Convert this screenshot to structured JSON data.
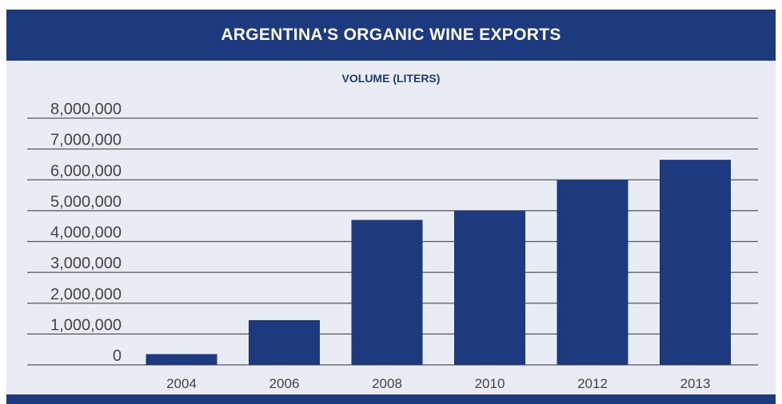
{
  "header": {
    "title": "ARGENTINA'S ORGANIC WINE EXPORTS"
  },
  "chart_data": {
    "type": "bar",
    "title": "ARGENTINA'S ORGANIC WINE EXPORTS",
    "subtitle": "VOLUME (LITERS)",
    "categories": [
      "2004",
      "2006",
      "2008",
      "2010",
      "2012",
      "2013"
    ],
    "values": [
      350000,
      1450000,
      4700000,
      5000000,
      6000000,
      6650000
    ],
    "ylim": [
      0,
      8000000
    ],
    "yticks": [
      "0",
      "1,000,000",
      "2,000,000",
      "3,000,000",
      "4,000,000",
      "5,000,000",
      "6,000,000",
      "7,000,000",
      "8,000,000"
    ],
    "grid": true,
    "colors": {
      "bar": "#1e3a7e",
      "header": "#1e3a7e",
      "background": "#e9edf3",
      "grid": "#555555"
    }
  }
}
